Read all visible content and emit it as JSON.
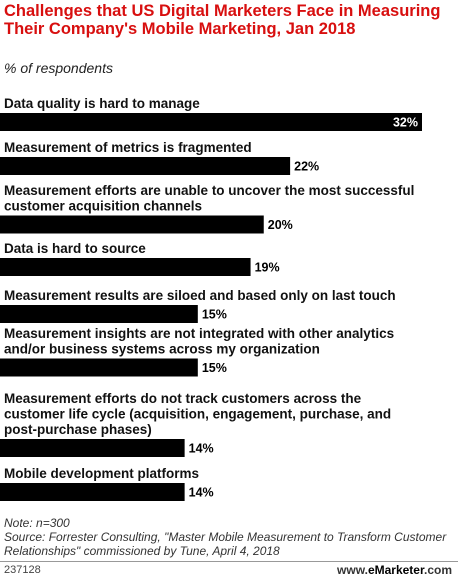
{
  "chart_data": {
    "type": "bar",
    "orientation": "horizontal",
    "title": "Challenges that US Digital Marketers Face in Measuring Their Company's Mobile Marketing, Jan 2018",
    "subtitle": "% of respondents",
    "categories": [
      [
        "Data quality is hard to manage"
      ],
      [
        "Measurement of metrics is fragmented"
      ],
      [
        "Measurement efforts are unable to uncover the most successful",
        "customer acquisition channels"
      ],
      [
        "Data is hard to source"
      ],
      [
        "Measurement results are siloed and based only on last touch"
      ],
      [
        "Measurement insights are not integrated with other analytics",
        "and/or business systems across my organization"
      ],
      [
        "Measurement efforts do not track customers across the",
        "customer life cycle (acquisition, engagement, purchase, and",
        "post-purchase phases)"
      ],
      [
        "Mobile development platforms"
      ]
    ],
    "values": [
      32,
      22,
      20,
      19,
      15,
      15,
      14,
      14
    ],
    "value_labels": [
      "32%",
      "22%",
      "20%",
      "19%",
      "15%",
      "15%",
      "14%",
      "14%"
    ],
    "xlim": [
      0,
      32
    ],
    "bar_color": "#000000",
    "grid": false,
    "legend": "none"
  },
  "notes": {
    "note": "Note: n=300",
    "source": "Source: Forrester Consulting, \"Master Mobile Measurement to Transform Customer Relationships\" commissioned by Tune, April 4, 2018"
  },
  "footer": {
    "chart_id": "237128",
    "brand_prefix": "www.",
    "brand_name": "eMarketer",
    "brand_suffix": ".com"
  },
  "colors": {
    "title": "#d80f0f",
    "bar": "#000000",
    "inside_label": "#ffffff"
  }
}
